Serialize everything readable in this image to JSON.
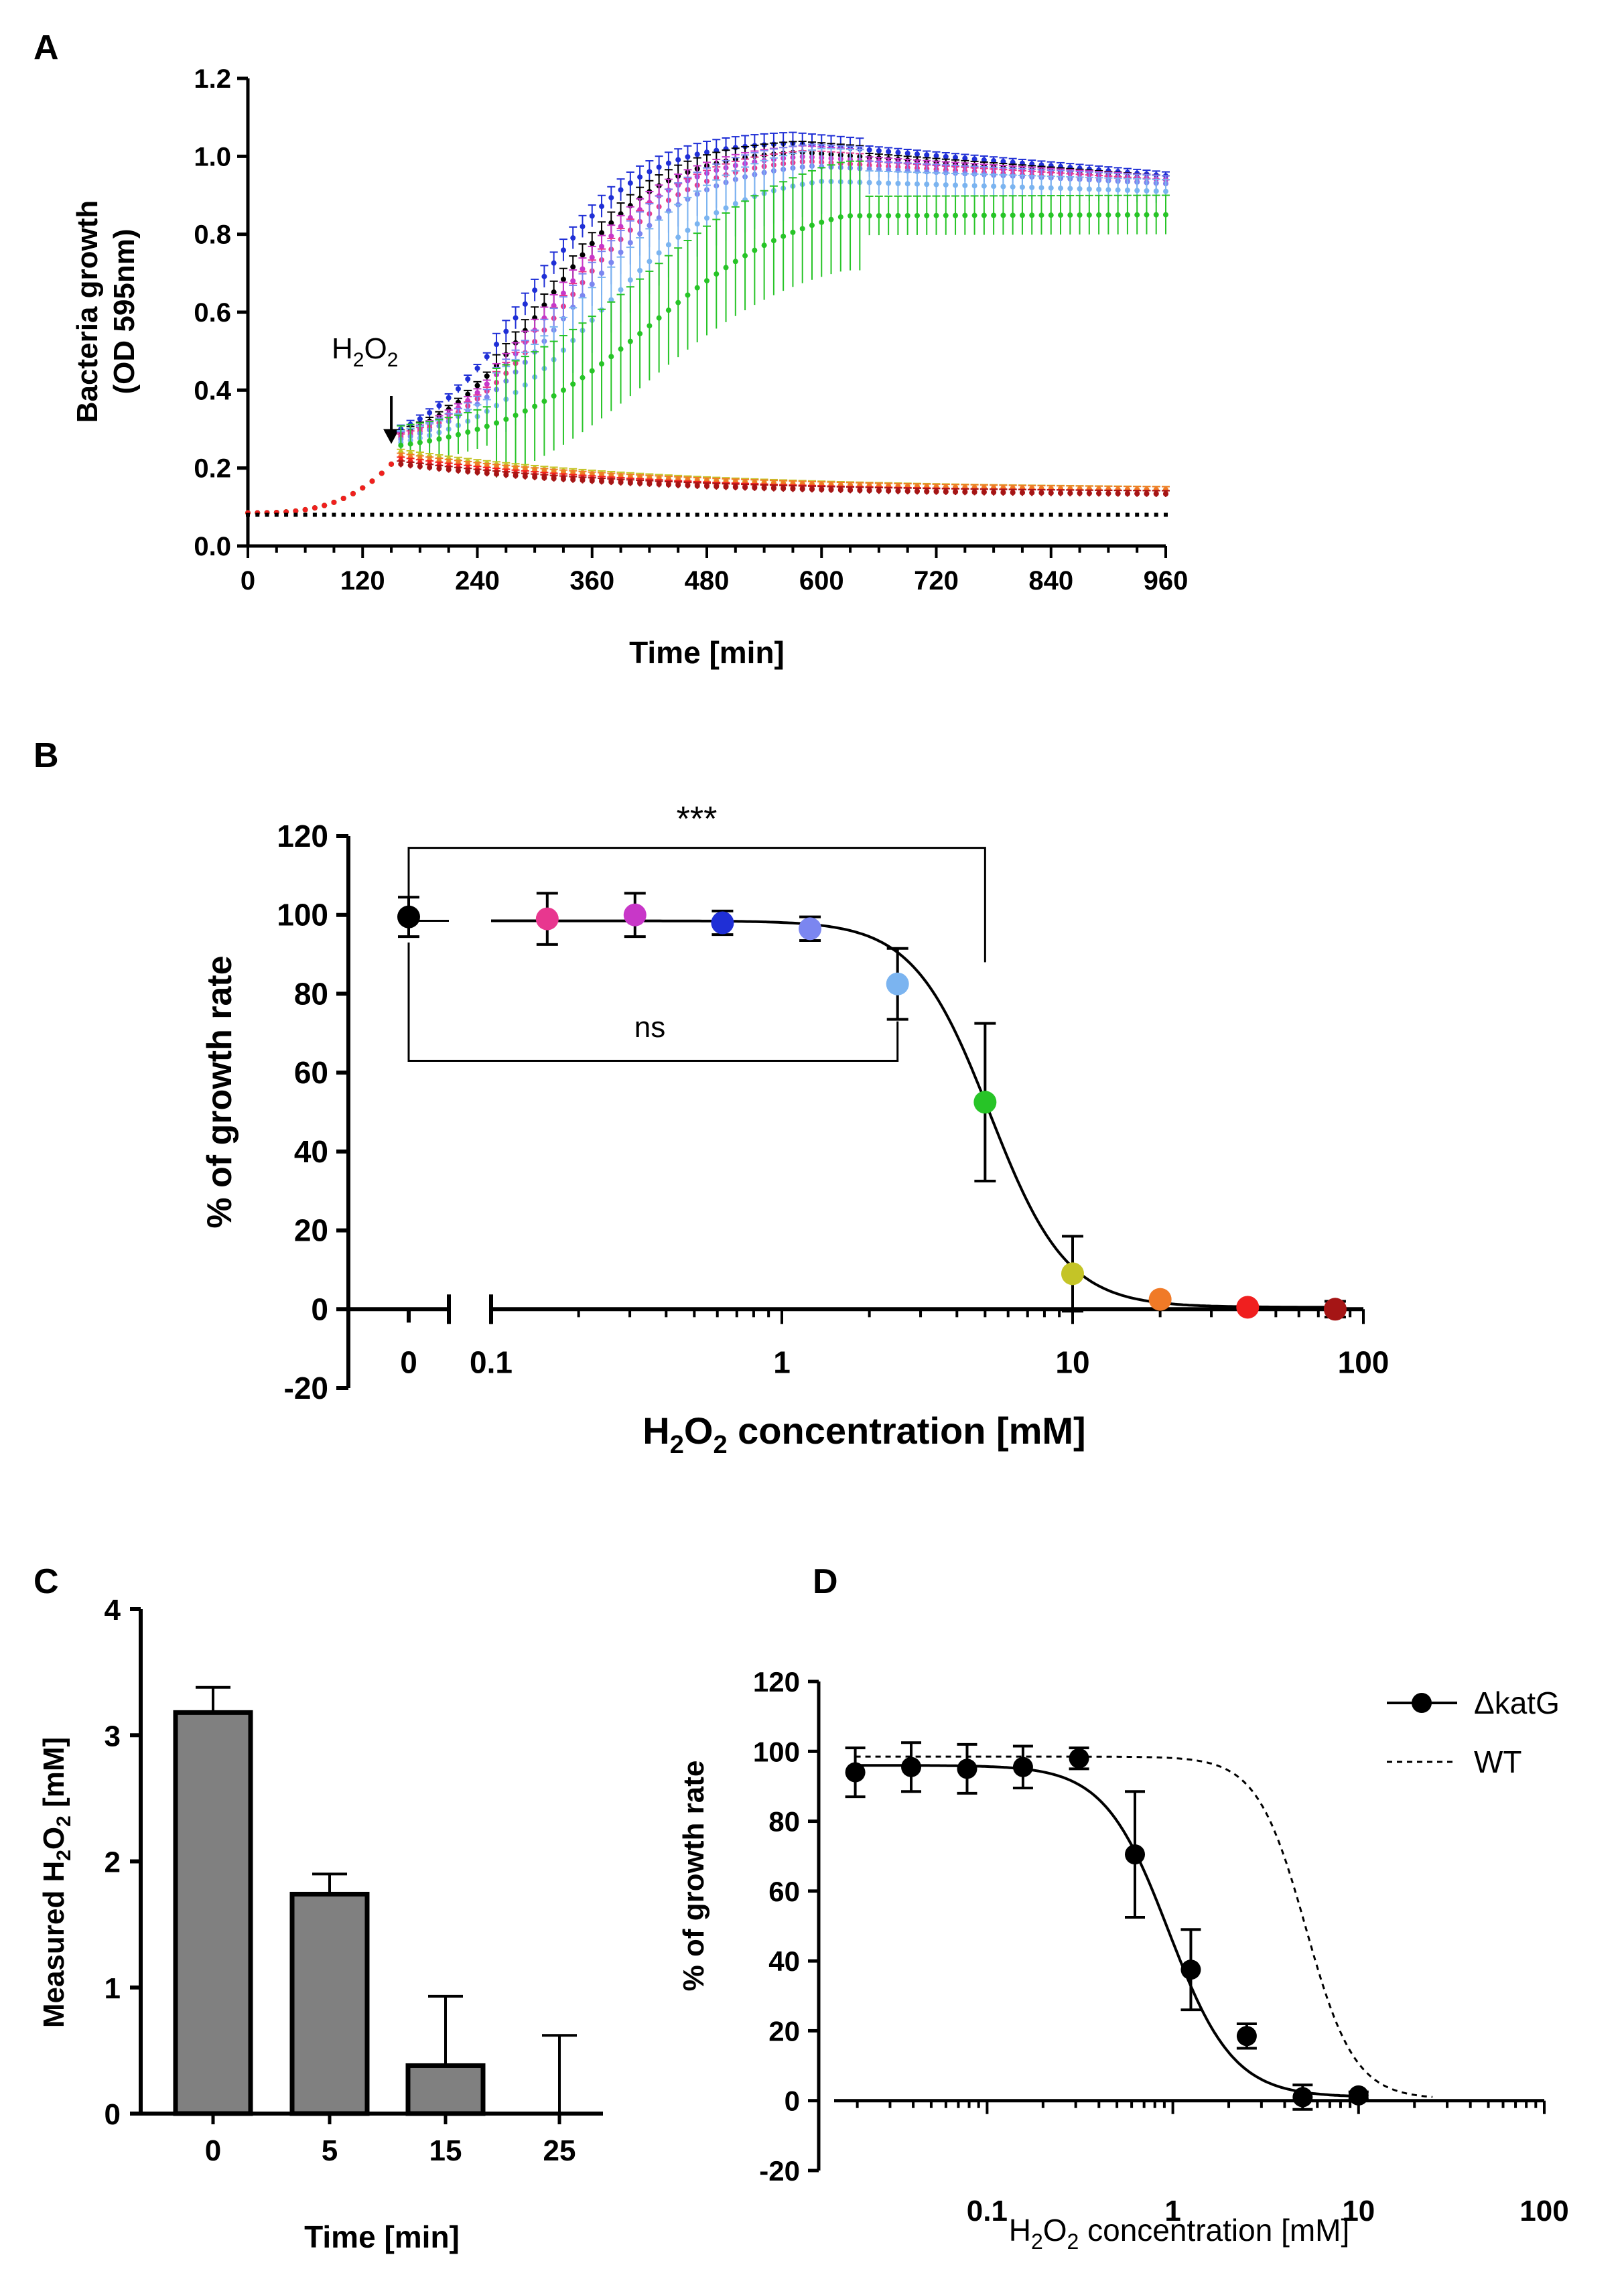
{
  "panels": {
    "A": {
      "label": "A",
      "ylabel_1": "Bacteria growth",
      "ylabel_2": "(OD 595nm)",
      "xlabel": "Time [min]",
      "annotation_main": "H",
      "annotation_sub": "2",
      "annotation_main2": "O",
      "annotation_sub2": "2"
    },
    "B": {
      "label": "B",
      "ylabel": "% of growth rate",
      "xlabel_pre": "H",
      "xlabel_sub1": "2",
      "xlabel_mid": "O",
      "xlabel_sub2": "2",
      "xlabel_post": " concentration [mM]",
      "sig_top": "***",
      "sig_bottom": "ns"
    },
    "C": {
      "label": "C",
      "ylabel_pre": "Measured H",
      "ylabel_sub1": "2",
      "ylabel_mid": "O",
      "ylabel_sub2": "2",
      "ylabel_post": " [mM]",
      "xlabel": "Time [min]"
    },
    "D": {
      "label": "D",
      "ylabel": "% of growth rate",
      "xlabel_pre": "H",
      "xlabel_sub1": "2",
      "xlabel_mid": "O",
      "xlabel_sub2": "2",
      "xlabel_post": " concentration [mM]",
      "legend_1": "ΔkatG",
      "legend_2": "WT"
    }
  },
  "colors": {
    "black": "#000000",
    "pink": "#e8378f",
    "magenta": "#c837c8",
    "blue": "#1f2fd6",
    "lightblue": "#7b86f0",
    "skyblue": "#7bb4f0",
    "green": "#27c427",
    "olive": "#c4c427",
    "orange": "#f07a27",
    "red": "#f01f1f",
    "darkred": "#a51515",
    "bar": "#808080"
  },
  "chart_data": [
    {
      "panel": "A",
      "type": "line",
      "xlabel": "Time [min]",
      "ylabel": "Bacteria growth (OD 595nm)",
      "xlim": [
        0,
        960
      ],
      "ylim": [
        0,
        1.2
      ],
      "xticks": [
        "0",
        "120",
        "240",
        "360",
        "480",
        "600",
        "720",
        "840",
        "960"
      ],
      "yticks": [
        "0.0",
        "0.2",
        "0.4",
        "0.6",
        "0.8",
        "1.0",
        "1.2"
      ],
      "treatment_time": 150,
      "series": [
        {
          "color": "blue",
          "peak": 1.04,
          "end": 0.95,
          "err": 0.01
        },
        {
          "color": "black",
          "peak": 1.02,
          "end": 0.94,
          "err": 0.01
        },
        {
          "color": "magenta",
          "peak": 1.01,
          "end": 0.94,
          "err": 0.01
        },
        {
          "color": "pink",
          "peak": 1.0,
          "end": 0.93,
          "err": 0.01
        },
        {
          "color": "lightblue",
          "peak": 0.99,
          "end": 0.93,
          "err": 0.02
        },
        {
          "color": "skyblue",
          "peak": 0.96,
          "end": 0.91,
          "err": 0.03
        },
        {
          "color": "green",
          "peak": 0.9,
          "end": 0.85,
          "err": 0.05
        },
        {
          "color": "olive",
          "start": 0.24,
          "end": 0.14
        },
        {
          "color": "orange",
          "start": 0.23,
          "end": 0.14
        },
        {
          "color": "red",
          "start": 0.22,
          "end": 0.13
        },
        {
          "color": "darkred",
          "start": 0.21,
          "end": 0.13
        },
        {
          "color": "black",
          "blank": 0.08
        }
      ]
    },
    {
      "panel": "B",
      "type": "scatter",
      "xlabel": "H2O2 concentration [mM]",
      "ylabel": "% of growth rate",
      "xscale": "log",
      "ylim": [
        -20,
        120
      ],
      "yticks": [
        "-20",
        "0",
        "20",
        "40",
        "60",
        "80",
        "100",
        "120"
      ],
      "xticks": [
        "0",
        "0.1",
        "1",
        "10",
        "100"
      ],
      "points": [
        {
          "x": 0,
          "y": 99.5,
          "err": 5,
          "color": "black"
        },
        {
          "x": 0.156,
          "y": 99.0,
          "err": 6.5,
          "color": "pink"
        },
        {
          "x": 0.3125,
          "y": 100.0,
          "err": 5.5,
          "color": "magenta"
        },
        {
          "x": 0.625,
          "y": 98.0,
          "err": 3,
          "color": "blue"
        },
        {
          "x": 1.25,
          "y": 96.5,
          "err": 3,
          "color": "lightblue"
        },
        {
          "x": 2.5,
          "y": 82.5,
          "err": 9,
          "color": "skyblue"
        },
        {
          "x": 5,
          "y": 52.5,
          "err": 20,
          "color": "green"
        },
        {
          "x": 10,
          "y": 9.0,
          "err": 9.5,
          "color": "olive"
        },
        {
          "x": 20,
          "y": 2.5,
          "err": 0.5,
          "color": "orange"
        },
        {
          "x": 40,
          "y": 0.5,
          "err": 0.5,
          "color": "red"
        },
        {
          "x": 80,
          "y": 0.0,
          "err": 2,
          "color": "darkred"
        }
      ],
      "fit": {
        "top": 98.5,
        "bottom": 0.5,
        "ic50": 5.2,
        "hill": 3.3
      },
      "annotations": [
        "***",
        "ns"
      ]
    },
    {
      "panel": "C",
      "type": "bar",
      "xlabel": "Time [min]",
      "ylabel": "Measured H2O2 [mM]",
      "categories": [
        "0",
        "5",
        "15",
        "25"
      ],
      "values": [
        3.18,
        1.74,
        0.38,
        0.0
      ],
      "errors": [
        0.2,
        0.16,
        0.55,
        0.62
      ],
      "ylim": [
        0,
        4
      ],
      "yticks": [
        "0",
        "1",
        "2",
        "3",
        "4"
      ]
    },
    {
      "panel": "D",
      "type": "scatter",
      "xlabel": "H2O2 concentration [mM]",
      "ylabel": "% of growth rate",
      "xscale": "log",
      "ylim": [
        -20,
        120
      ],
      "yticks": [
        "-20",
        "0",
        "20",
        "40",
        "60",
        "80",
        "100",
        "120"
      ],
      "xticks": [
        "0.1",
        "1",
        "10",
        "100"
      ],
      "series": [
        {
          "name": "ΔkatG",
          "points": [
            {
              "x": 0.0195,
              "y": 94,
              "err": 7
            },
            {
              "x": 0.039,
              "y": 95.5,
              "err": 7
            },
            {
              "x": 0.078,
              "y": 95,
              "err": 7
            },
            {
              "x": 0.156,
              "y": 95.5,
              "err": 6
            },
            {
              "x": 0.3125,
              "y": 98,
              "err": 3
            },
            {
              "x": 0.625,
              "y": 70.5,
              "err": 18
            },
            {
              "x": 1.25,
              "y": 37.5,
              "err": 11.5
            },
            {
              "x": 2.5,
              "y": 18.5,
              "err": 3.5
            },
            {
              "x": 5,
              "y": 1,
              "err": 3.5
            },
            {
              "x": 10,
              "y": 1.5,
              "err": 1
            }
          ],
          "fit": {
            "top": 96,
            "bottom": 1,
            "ic50": 0.95,
            "hill": 2.5
          }
        },
        {
          "name": "WT",
          "fit": {
            "top": 98.5,
            "bottom": 0.5,
            "ic50": 5.2,
            "hill": 3.3
          },
          "style": "dashed"
        }
      ]
    }
  ]
}
